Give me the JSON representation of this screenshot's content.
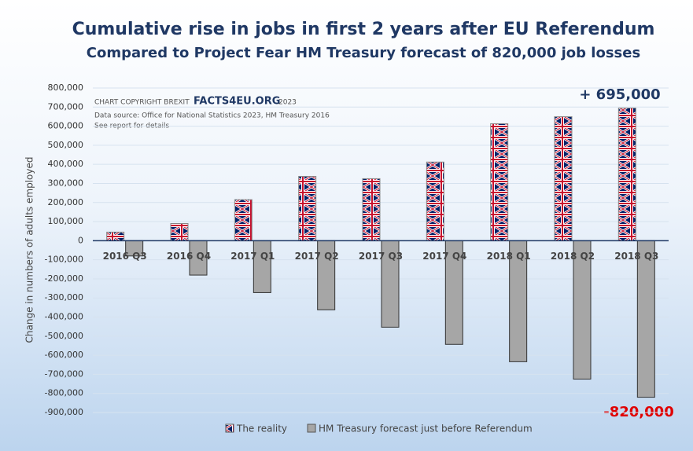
{
  "chart_data": {
    "type": "bar",
    "title": "Cumulative rise in jobs in first 2 years after EU Referendum",
    "subtitle": "Compared to Project Fear HM Treasury forecast of 820,000 job losses",
    "y_label": "Change in numbers of adults employed",
    "copyright": [
      "CHART COPYRIGHT BREXIT",
      "FACTS4EU.ORG",
      "2023"
    ],
    "source": "Data source: Office for National Statistics 2023, HM Treasury 2016",
    "note": "See report for details",
    "annotations": [
      "+ 695,000",
      "-820,000"
    ],
    "categories": [
      "2016 Q3",
      "2016 Q4",
      "2017 Q1",
      "2017 Q2",
      "2017 Q3",
      "2017 Q4",
      "2018 Q1",
      "2018 Q2",
      "2018 Q3"
    ],
    "series": [
      {
        "name": "The reality",
        "color": "#c8102e",
        "values": [
          45000,
          90000,
          215000,
          337000,
          325000,
          412000,
          613000,
          650000,
          695000
        ]
      },
      {
        "name": "HM Treasury forecast just before Referendum",
        "color": "#a6a6a6",
        "values": [
          -80000,
          -180000,
          -272000,
          -362000,
          -453000,
          -543000,
          -634000,
          -725000,
          -820000
        ]
      }
    ],
    "ylim": [
      -900000,
      800000
    ],
    "yticks": [
      {
        "value": 800000,
        "label": "800,000"
      },
      {
        "value": 700000,
        "label": "700,000"
      },
      {
        "value": 600000,
        "label": "600,000"
      },
      {
        "value": 500000,
        "label": "500,000"
      },
      {
        "value": 400000,
        "label": "400,000"
      },
      {
        "value": 300000,
        "label": "300,000"
      },
      {
        "value": 200000,
        "label": "200,000"
      },
      {
        "value": 100000,
        "label": "100,000"
      },
      0,
      {
        "value": -100000,
        "label": "-100,000"
      },
      {
        "value": -200000,
        "label": "-200,000"
      },
      {
        "value": -300000,
        "label": "-300,000"
      },
      {
        "value": -400000,
        "label": "-400,000"
      },
      {
        "value": -500000,
        "label": "-500,000"
      },
      {
        "value": -600000,
        "label": "-600,000"
      },
      {
        "value": -700000,
        "label": "-700,000"
      },
      {
        "value": -800000,
        "label": "-800,000"
      },
      {
        "value": -900000,
        "label": "-900,000"
      }
    ],
    "grid": true
  }
}
